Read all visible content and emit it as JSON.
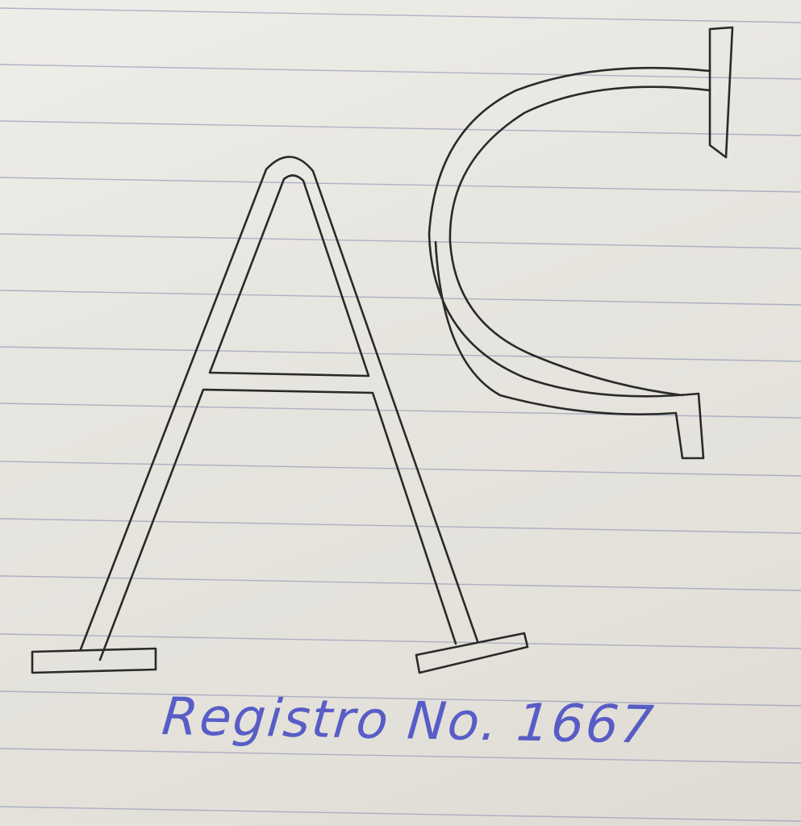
{
  "caption": {
    "text": "Registro No. 1667",
    "ink_color": "#4a4fc4"
  },
  "monogram": {
    "letters": "AC",
    "ink_color": "#2a2a2a"
  },
  "paper": {
    "background_color": "#e9e7e1",
    "rule_color": "#8e95b5"
  }
}
